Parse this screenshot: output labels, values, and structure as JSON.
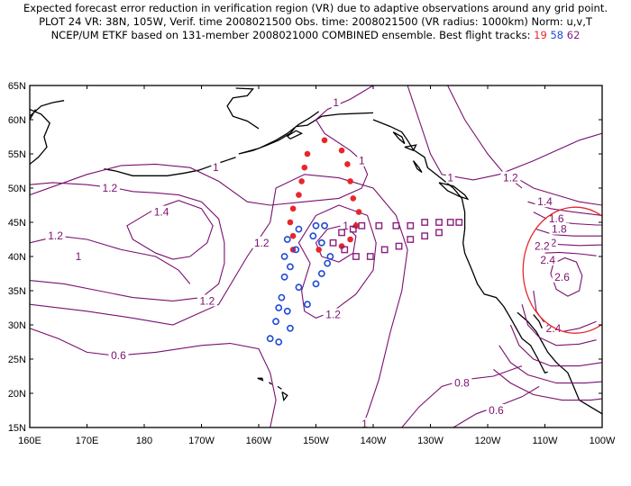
{
  "header": {
    "line1": "Expected forecast error reduction in verification region (VR) due to adaptive observations around any grid point.",
    "line2": "PLOT 24 VR: 38N, 105W, Verif. time 2008021500 Obs. time: 2008021500 (VR radius: 1000km) Norm: u,v,T",
    "line3_prefix": "NCEP/UM ETKF based on 131-member 2008021000 COMBINED ensemble.  Best flight tracks:",
    "track_red": "19",
    "track_blue": "58",
    "track_purple": "62"
  },
  "axes": {
    "lat_labels": [
      "65N",
      "60N",
      "55N",
      "50N",
      "45N",
      "40N",
      "35N",
      "30N",
      "25N",
      "20N",
      "15N"
    ],
    "lon_labels": [
      "160E",
      "170E",
      "180",
      "170W",
      "160W",
      "150W",
      "140W",
      "130W",
      "120W",
      "110W",
      "100W"
    ]
  },
  "contour_labels": [
    {
      "text": "1",
      "lon": -146.5,
      "lat": 62.5
    },
    {
      "text": "1",
      "lon": -142.0,
      "lat": 54.0
    },
    {
      "text": "1",
      "lon": -167.5,
      "lat": 53.0
    },
    {
      "text": "1",
      "lon": -126.5,
      "lat": 51.5
    },
    {
      "text": "1.2",
      "lon": -116.0,
      "lat": 51.5
    },
    {
      "text": "1.2",
      "lon": 174.0,
      "lat": 50.0
    },
    {
      "text": "1.4",
      "lon": -177.0,
      "lat": 46.5
    },
    {
      "text": "1.4",
      "lon": -144.0,
      "lat": 44.5
    },
    {
      "text": "1.2",
      "lon": 164.5,
      "lat": 43.0
    },
    {
      "text": "1.2",
      "lon": -159.5,
      "lat": 42.0
    },
    {
      "text": "1",
      "lon": 168.5,
      "lat": 40.0
    },
    {
      "text": "1.4",
      "lon": -110.0,
      "lat": 48.0
    },
    {
      "text": "1.6",
      "lon": -108.0,
      "lat": 45.5
    },
    {
      "text": "1.8",
      "lon": -107.5,
      "lat": 44.0
    },
    {
      "text": "2",
      "lon": -108.5,
      "lat": 42.0
    },
    {
      "text": "2.2",
      "lon": -110.5,
      "lat": 41.5
    },
    {
      "text": "2.4",
      "lon": -109.5,
      "lat": 39.5
    },
    {
      "text": "2.6",
      "lon": -107.0,
      "lat": 37.0
    },
    {
      "text": "2.4",
      "lon": -108.5,
      "lat": 29.5
    },
    {
      "text": "1.2",
      "lon": -169.0,
      "lat": 33.5
    },
    {
      "text": "1.2",
      "lon": -147.0,
      "lat": 31.5
    },
    {
      "text": "0.6",
      "lon": 175.5,
      "lat": 25.5
    },
    {
      "text": "0.8",
      "lon": -124.5,
      "lat": 21.5
    },
    {
      "text": "0.6",
      "lon": -118.5,
      "lat": 17.5
    },
    {
      "text": "1",
      "lon": -141.5,
      "lat": 15.5
    }
  ],
  "tracks": {
    "red_19": [
      [
        -148.5,
        57
      ],
      [
        -151.5,
        55
      ],
      [
        -145.5,
        55.5
      ],
      [
        -152,
        53
      ],
      [
        -144.5,
        53.5
      ],
      [
        -152.5,
        51
      ],
      [
        -144,
        51
      ],
      [
        -153,
        49
      ],
      [
        -143.5,
        48.5
      ],
      [
        -154,
        47
      ],
      [
        -142.5,
        46.5
      ],
      [
        -154.5,
        45
      ],
      [
        -143,
        44.5
      ],
      [
        -154,
        43
      ],
      [
        -144,
        42.5
      ],
      [
        -154,
        41
      ],
      [
        -149.5,
        41
      ],
      [
        -145.5,
        41.5
      ]
    ],
    "blue_58": [
      [
        -150,
        44.5
      ],
      [
        -148.5,
        44.5
      ],
      [
        -153,
        44
      ],
      [
        -150.5,
        43
      ],
      [
        -155,
        42.5
      ],
      [
        -149,
        42
      ],
      [
        -153.5,
        41
      ],
      [
        -147.5,
        40
      ],
      [
        -155.5,
        40
      ],
      [
        -148,
        39
      ],
      [
        -154.5,
        38.5
      ],
      [
        -149,
        37.5
      ],
      [
        -155.5,
        37
      ],
      [
        -150,
        36
      ],
      [
        -153,
        35.5
      ],
      [
        -156,
        34
      ],
      [
        -151.5,
        33
      ],
      [
        -156.5,
        32.5
      ],
      [
        -155,
        32
      ],
      [
        -157,
        30.5
      ],
      [
        -154.5,
        29.5
      ],
      [
        -158,
        28
      ],
      [
        -156.5,
        27.5
      ]
    ],
    "purple_62": [
      [
        -142,
        44.5
      ],
      [
        -139,
        44.5
      ],
      [
        -136,
        44.5
      ],
      [
        -133.5,
        44.5
      ],
      [
        -131,
        45
      ],
      [
        -128.5,
        45
      ],
      [
        -126.5,
        45
      ],
      [
        -125,
        45
      ],
      [
        -143.5,
        44
      ],
      [
        -145.5,
        43.5
      ],
      [
        -147,
        42
      ],
      [
        -145,
        41
      ],
      [
        -143,
        40
      ],
      [
        -140.5,
        40
      ],
      [
        -138,
        41
      ],
      [
        -135.5,
        41.5
      ],
      [
        -133.5,
        42.5
      ],
      [
        -131,
        43
      ],
      [
        -128.5,
        43.5
      ]
    ]
  },
  "verification_region": {
    "lon": -105,
    "lat": 38,
    "radius_km": 1000
  },
  "colors": {
    "contour": "#7a1070",
    "coast": "#000000",
    "red": "#e8262a",
    "blue": "#1f49d6",
    "purple": "#8a1f7d",
    "vr_circle": "#e8262a"
  }
}
